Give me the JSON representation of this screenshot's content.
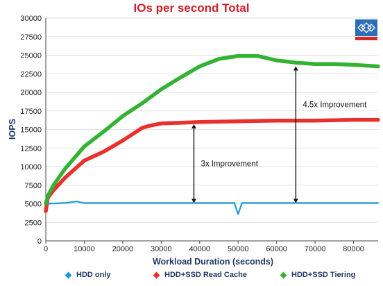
{
  "chart_data": {
    "type": "line",
    "title": "IOs per second Total",
    "xlabel": "Workload Duration (seconds)",
    "ylabel": "IOPS",
    "xlim": [
      0,
      86400
    ],
    "ylim": [
      0,
      30000
    ],
    "x_ticks": [
      0,
      10000,
      20000,
      30000,
      40000,
      50000,
      60000,
      70000,
      80000
    ],
    "y_ticks": [
      0,
      2500,
      5000,
      7500,
      10000,
      12500,
      15000,
      17500,
      20000,
      22500,
      25000,
      27500,
      30000
    ],
    "grid": true,
    "legend_position": "bottom",
    "series": [
      {
        "name": "HDD only",
        "color": "#1e9bd7",
        "x": [
          0,
          5000,
          8000,
          10000,
          20000,
          30000,
          40000,
          49000,
          50000,
          51000,
          60000,
          70000,
          80000,
          86400
        ],
        "y": [
          5000,
          5100,
          5300,
          5100,
          5100,
          5100,
          5100,
          5100,
          3600,
          5100,
          5100,
          5100,
          5100,
          5100
        ]
      },
      {
        "name": "HDD+SSD Read Cache",
        "color": "#e8302c",
        "x": [
          0,
          500,
          2000,
          5000,
          10000,
          15000,
          20000,
          25000,
          27000,
          30000,
          40000,
          50000,
          60000,
          70000,
          80000,
          86400
        ],
        "y": [
          4000,
          5800,
          6800,
          8500,
          10800,
          12000,
          13500,
          15200,
          15500,
          15800,
          16000,
          16100,
          16200,
          16200,
          16300,
          16300
        ]
      },
      {
        "name": "HDD+SSD Tiering",
        "color": "#34b233",
        "x": [
          0,
          500,
          2000,
          5000,
          10000,
          15000,
          20000,
          25000,
          30000,
          35000,
          40000,
          45000,
          50000,
          55000,
          60000,
          65000,
          70000,
          75000,
          80000,
          86400
        ],
        "y": [
          5000,
          6000,
          7500,
          9700,
          12700,
          14700,
          16800,
          18500,
          20400,
          22000,
          23500,
          24500,
          24900,
          24900,
          24300,
          24000,
          23800,
          23800,
          23700,
          23500
        ]
      }
    ],
    "annotations": [
      {
        "text": "3x Improvement",
        "x_at": 38500,
        "from": 5100,
        "to": 15700
      },
      {
        "text": "4.5x Improvement",
        "x_at": 65000,
        "from": 5100,
        "to": 23500
      }
    ]
  },
  "colors": {
    "title": "#d0202a",
    "axis_title": "#1f3864",
    "grid": "#d9d9d9",
    "logo_blue": "#2c6fb6",
    "logo_red": "#d62a2a"
  },
  "logo": {
    "icon": "diamond-logo-icon"
  }
}
